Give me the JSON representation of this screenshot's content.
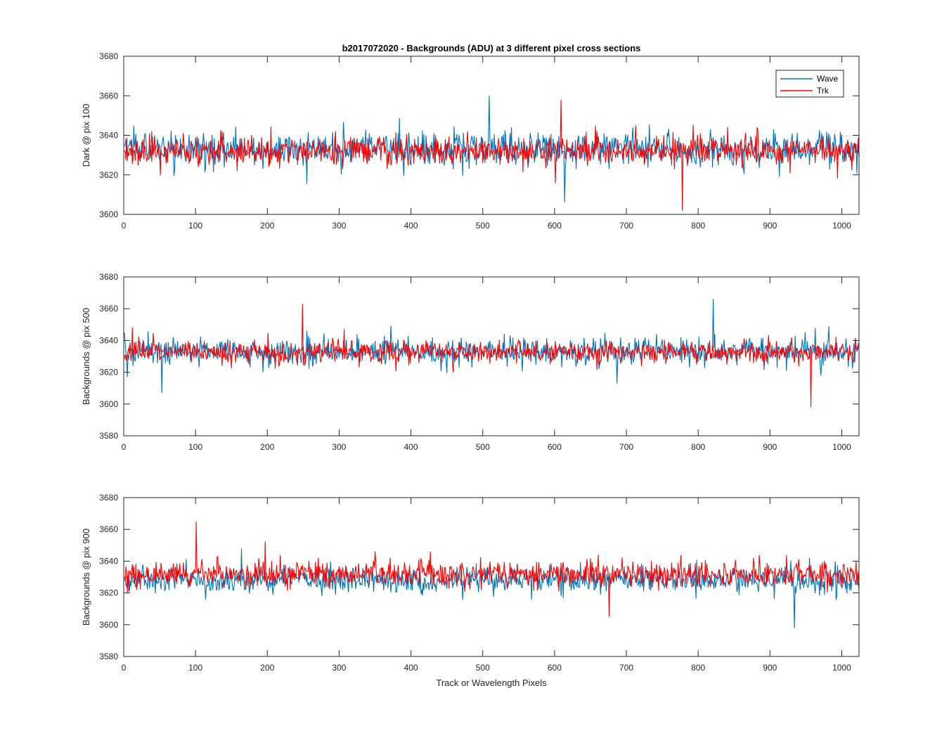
{
  "figure": {
    "title": "b2017072020 - Backgrounds (ADU) at 3 different pixel cross sections"
  },
  "legend": {
    "position": "top-right of first subplot",
    "entries": [
      {
        "label": "Wave",
        "color": "#0072BD"
      },
      {
        "label": "Trk",
        "color": "#FF0000"
      }
    ]
  },
  "chart_data": [
    {
      "type": "line",
      "ylabel": "Dark @ pix 100",
      "xlabel": "",
      "xlim": [
        0,
        1024
      ],
      "ylim": [
        3600,
        3680
      ],
      "xticks": [
        0,
        100,
        200,
        300,
        400,
        500,
        600,
        700,
        800,
        900,
        1000
      ],
      "yticks": [
        3600,
        3620,
        3640,
        3660,
        3680
      ],
      "n_points": 1024,
      "series": [
        {
          "name": "Wave",
          "color": "#0072BD",
          "mean": 3633,
          "noise_sd": 7.5,
          "spike_max": 3660,
          "spike_min": 3606
        },
        {
          "name": "Trk",
          "color": "#FF0000",
          "mean": 3632,
          "noise_sd": 6.5,
          "spike_max": 3658,
          "spike_min": 3602
        }
      ]
    },
    {
      "type": "line",
      "ylabel": "Backgrounds @ pix 500",
      "xlabel": "",
      "xlim": [
        0,
        1024
      ],
      "ylim": [
        3580,
        3680
      ],
      "xticks": [
        0,
        100,
        200,
        300,
        400,
        500,
        600,
        700,
        800,
        900,
        1000
      ],
      "yticks": [
        3580,
        3600,
        3620,
        3640,
        3660,
        3680
      ],
      "n_points": 1024,
      "series": [
        {
          "name": "Wave",
          "color": "#0072BD",
          "mean": 3633,
          "noise_sd": 7.0,
          "spike_max": 3666,
          "spike_min": 3607
        },
        {
          "name": "Trk",
          "color": "#FF0000",
          "mean": 3633,
          "noise_sd": 6.0,
          "spike_max": 3663,
          "spike_min": 3598
        }
      ]
    },
    {
      "type": "line",
      "ylabel": "Backgrounds @ pix 900",
      "xlabel": "Track or Wavelength Pixels",
      "xlim": [
        0,
        1024
      ],
      "ylim": [
        3580,
        3680
      ],
      "xticks": [
        0,
        100,
        200,
        300,
        400,
        500,
        600,
        700,
        800,
        900,
        1000
      ],
      "yticks": [
        3580,
        3600,
        3620,
        3640,
        3660,
        3680
      ],
      "n_points": 1024,
      "series": [
        {
          "name": "Wave",
          "color": "#0072BD",
          "mean": 3628,
          "noise_sd": 6.5,
          "spike_max": 3648,
          "spike_min": 3598
        },
        {
          "name": "Trk",
          "color": "#FF0000",
          "mean": 3632,
          "noise_sd": 7.0,
          "spike_max": 3665,
          "spike_min": 3605
        }
      ]
    }
  ]
}
